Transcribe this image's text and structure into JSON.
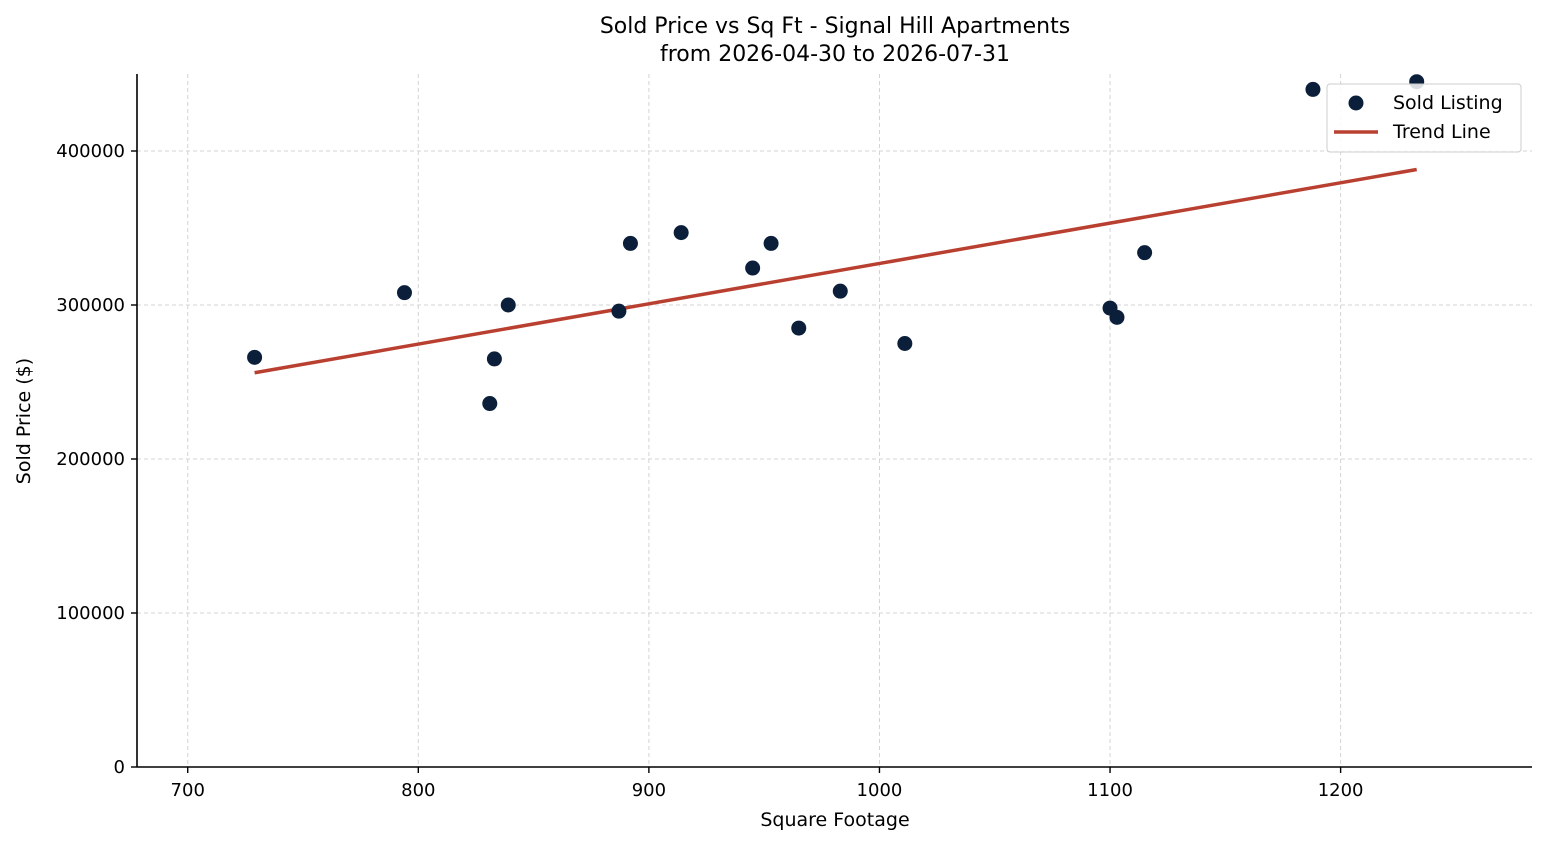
{
  "chart_data": {
    "type": "scatter",
    "title": "Sold Price vs Sq Ft - Signal Hill Apartments",
    "subtitle": "from 2026-04-30 to 2026-07-31",
    "xlabel": "Square Footage",
    "ylabel": "Sold Price ($)",
    "xlim": [
      678,
      1283
    ],
    "ylim": [
      0,
      450000
    ],
    "xticks": [
      700,
      800,
      900,
      1000,
      1100,
      1200
    ],
    "yticks": [
      0,
      100000,
      200000,
      300000,
      400000
    ],
    "grid": true,
    "legend_position": "top-right",
    "colors": {
      "points": "#0b1f3a",
      "trend": "#b94030"
    },
    "series": [
      {
        "name": "Sold Listing",
        "kind": "scatter",
        "points": [
          {
            "x": 729,
            "y": 266000
          },
          {
            "x": 794,
            "y": 308000
          },
          {
            "x": 831,
            "y": 236000
          },
          {
            "x": 833,
            "y": 265000
          },
          {
            "x": 839,
            "y": 300000
          },
          {
            "x": 887,
            "y": 296000
          },
          {
            "x": 892,
            "y": 340000
          },
          {
            "x": 914,
            "y": 347000
          },
          {
            "x": 945,
            "y": 324000
          },
          {
            "x": 953,
            "y": 340000
          },
          {
            "x": 965,
            "y": 285000
          },
          {
            "x": 983,
            "y": 309000
          },
          {
            "x": 1011,
            "y": 275000
          },
          {
            "x": 1100,
            "y": 298000
          },
          {
            "x": 1103,
            "y": 292000
          },
          {
            "x": 1115,
            "y": 334000
          },
          {
            "x": 1188,
            "y": 440000
          },
          {
            "x": 1233,
            "y": 445000
          }
        ]
      },
      {
        "name": "Trend Line",
        "kind": "line",
        "points": [
          {
            "x": 729,
            "y": 256000
          },
          {
            "x": 1233,
            "y": 388000
          }
        ]
      }
    ]
  }
}
